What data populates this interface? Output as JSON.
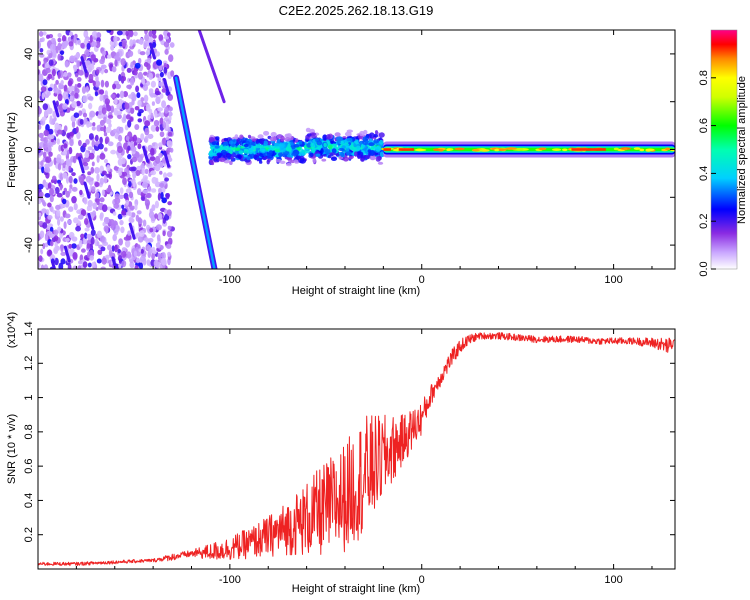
{
  "title": "C2E2.2025.262.18.13.G19",
  "colorbar": {
    "label": "Normalized spectral amplitude",
    "ticks": [
      "0.0",
      "0.2",
      "0.4",
      "0.6",
      "0.8"
    ],
    "tick_values": [
      0.0,
      0.2,
      0.4,
      0.6,
      0.8
    ],
    "range": [
      0.0,
      1.0
    ]
  },
  "chart_data": [
    {
      "type": "heatmap",
      "title": "C2E2.2025.262.18.13.G19",
      "xlabel": "Height of straight line (km)",
      "ylabel": "Frequency (Hz)",
      "xlim": [
        -200,
        132
      ],
      "ylim": [
        -50,
        50
      ],
      "x_ticks": [
        -100,
        0,
        100
      ],
      "x_tick_labels": [
        "-100",
        "0",
        "100"
      ],
      "y_ticks": [
        -40,
        -20,
        0,
        20,
        40
      ],
      "y_tick_labels": [
        "-40",
        "-20",
        "0",
        "20",
        "40"
      ],
      "features": [
        {
          "name": "scattered noise",
          "x_range": [
            -200,
            -130
          ],
          "y_range": [
            -50,
            50
          ],
          "amplitude": 0.15
        },
        {
          "name": "steep streak",
          "x_start": -128,
          "y_start": 30,
          "x_end": -108,
          "y_end": -50,
          "amplitude": 0.35
        },
        {
          "name": "upper streak",
          "x_start": -116,
          "y_start": 50,
          "x_end": -103,
          "y_end": 20,
          "amplitude": 0.1
        },
        {
          "name": "broad scintillation band",
          "x_range": [
            -110,
            -20
          ],
          "center_hz": 0,
          "halfwidth_hz": 6,
          "amplitude": 0.45
        },
        {
          "name": "carrier line",
          "x_range": [
            -20,
            132
          ],
          "center_hz": 0,
          "halfwidth_hz": 2,
          "amplitude": 0.8
        }
      ]
    },
    {
      "type": "line",
      "xlabel": "Height of straight line (km)",
      "ylabel": "SNR (10 * v/v)",
      "y_multiplier": "(x10^4)",
      "xlim": [
        -200,
        132
      ],
      "ylim": [
        0,
        1.4
      ],
      "x_ticks": [
        -100,
        0,
        100
      ],
      "x_tick_labels": [
        "-100",
        "0",
        "100"
      ],
      "y_ticks": [
        0.2,
        0.4,
        0.6,
        0.8,
        1.0,
        1.2,
        1.4
      ],
      "y_tick_labels": [
        "0.2",
        "0.4",
        "0.6",
        "0.8",
        "1",
        "1.2",
        "1.4"
      ],
      "series": [
        {
          "name": "SNR",
          "color": "#ee2222",
          "x": [
            -200,
            -180,
            -160,
            -140,
            -130,
            -120,
            -110,
            -100,
            -90,
            -80,
            -70,
            -60,
            -50,
            -40,
            -30,
            -20,
            -10,
            0,
            5,
            10,
            15,
            20,
            25,
            30,
            40,
            50,
            60,
            70,
            80,
            90,
            100,
            110,
            120,
            125,
            128,
            132
          ],
          "mean": [
            0.03,
            0.03,
            0.04,
            0.05,
            0.07,
            0.09,
            0.1,
            0.12,
            0.15,
            0.19,
            0.24,
            0.29,
            0.35,
            0.42,
            0.55,
            0.65,
            0.75,
            0.88,
            1.02,
            1.12,
            1.22,
            1.3,
            1.34,
            1.36,
            1.36,
            1.35,
            1.34,
            1.34,
            1.34,
            1.33,
            1.33,
            1.33,
            1.32,
            1.31,
            1.3,
            1.32
          ],
          "spread": [
            0.01,
            0.01,
            0.01,
            0.01,
            0.02,
            0.02,
            0.05,
            0.07,
            0.09,
            0.12,
            0.16,
            0.22,
            0.28,
            0.32,
            0.35,
            0.25,
            0.15,
            0.1,
            0.06,
            0.05,
            0.05,
            0.04,
            0.03,
            0.02,
            0.02,
            0.02,
            0.02,
            0.02,
            0.02,
            0.02,
            0.02,
            0.02,
            0.03,
            0.04,
            0.05,
            0.03
          ]
        }
      ]
    }
  ]
}
